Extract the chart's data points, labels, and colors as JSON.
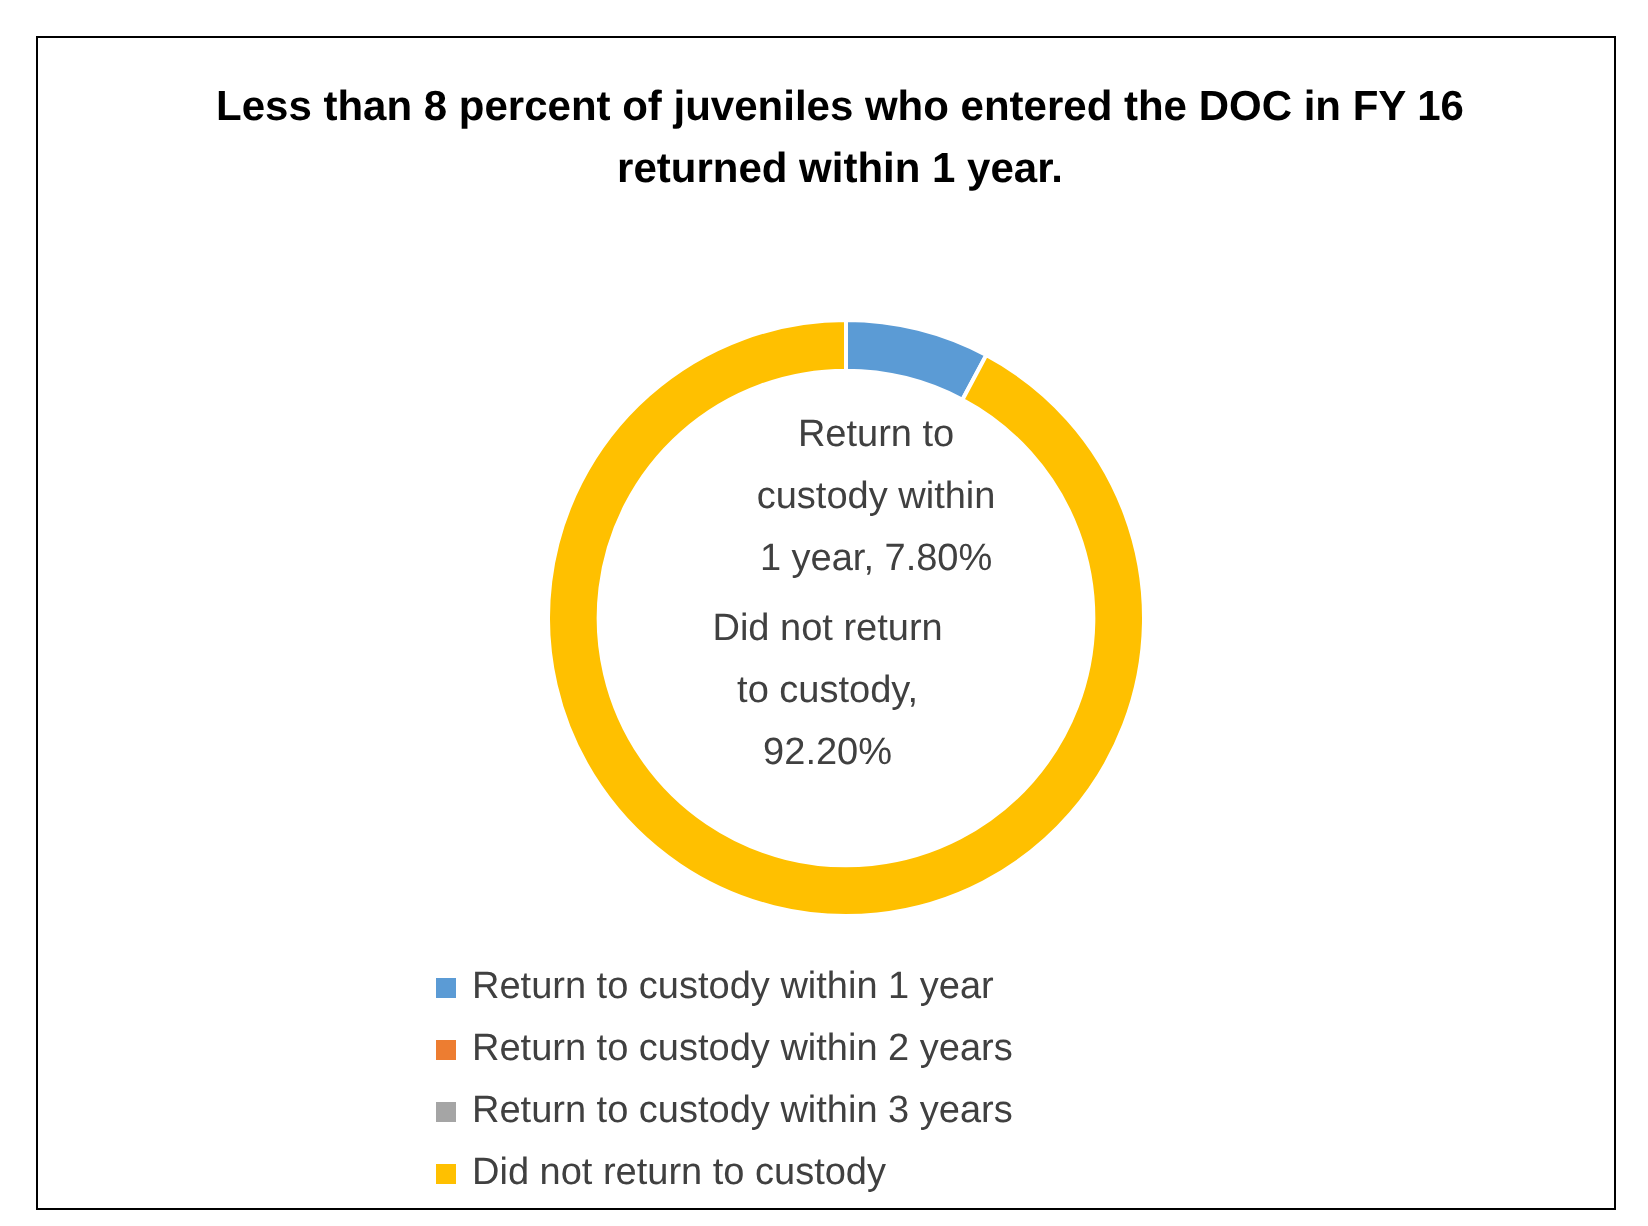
{
  "chart_data": {
    "type": "donut",
    "title": "Less than 8 percent of juveniles who entered the DOC in FY 16 returned within 1 year.",
    "categories": [
      "Return to custody within 1 year",
      "Return to custody within 2 years",
      "Return to custody within 3 years",
      "Did not return to custody"
    ],
    "values": [
      7.8,
      0,
      0,
      92.2
    ],
    "colors": [
      "#5b9bd5",
      "#ed7d31",
      "#a5a5a5",
      "#ffc000"
    ],
    "value_labels": [
      "Return to custody within 1 year, 7.80%",
      null,
      null,
      "Did not return to custody, 92.20%"
    ],
    "legend": "bottom"
  }
}
